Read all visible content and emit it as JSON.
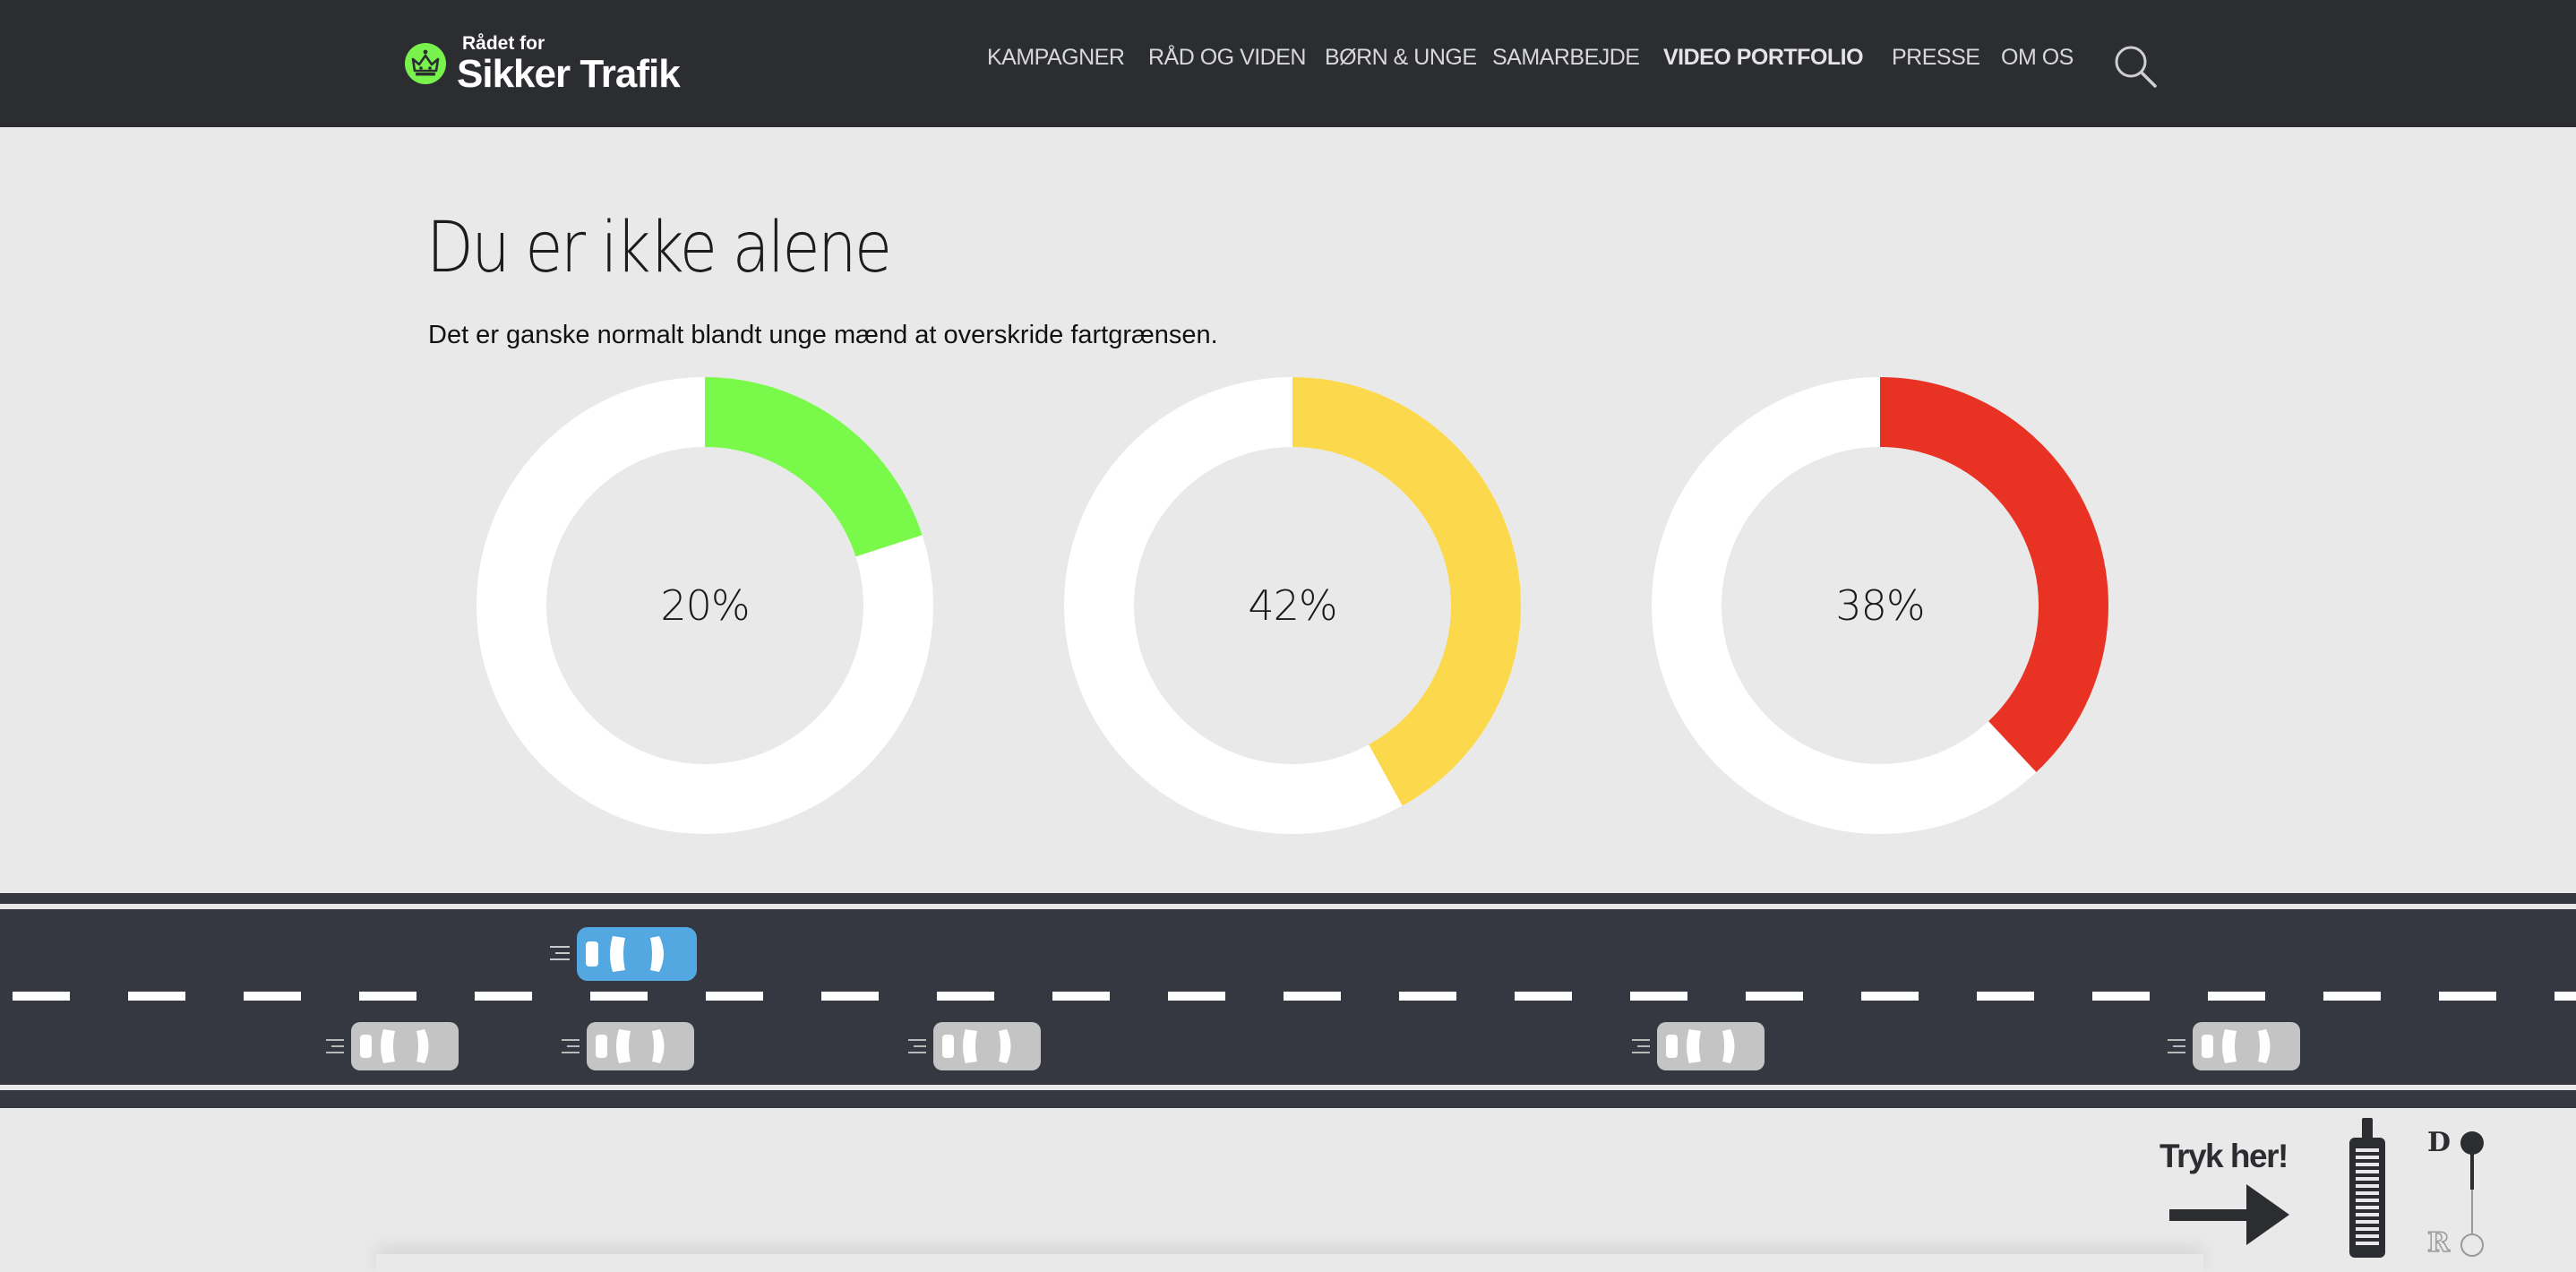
{
  "header": {
    "logo_small": "Rådet for",
    "logo_big": "Sikker Trafik",
    "nav": [
      {
        "label": "KAMPAGNER",
        "bold": false
      },
      {
        "label": "RÅD OG VIDEN",
        "bold": false
      },
      {
        "label": "BØRN & UNGE",
        "bold": false
      },
      {
        "label": "SAMARBEJDE",
        "bold": false
      },
      {
        "label": "VIDEO PORTFOLIO",
        "bold": true
      },
      {
        "label": "PRESSE",
        "bold": false
      },
      {
        "label": "OM OS",
        "bold": false
      }
    ],
    "search_icon": "search-icon"
  },
  "main": {
    "title": "Du er ikke alene",
    "subtitle": "Det er ganske normalt blandt unge mænd at overskride fartgrænsen."
  },
  "chart_data": {
    "type": "pie",
    "variant": "donut",
    "series": [
      {
        "label": "20%",
        "value": 20,
        "color": "#79fa4b"
      },
      {
        "label": "42%",
        "value": 42,
        "color": "#fcd84c"
      },
      {
        "label": "38%",
        "value": 38,
        "color": "#e83224"
      }
    ],
    "track_color": "#ffffff"
  },
  "road": {
    "player_car_color": "#53a8e2",
    "traffic_car_color": "#c4c4c4"
  },
  "controls": {
    "cta": "Tryk her!",
    "gear_drive": "D",
    "gear_reverse": "R"
  },
  "colors": {
    "header_bg": "#2b2d31",
    "page_bg": "#e9e9e9",
    "road": "#353840"
  }
}
